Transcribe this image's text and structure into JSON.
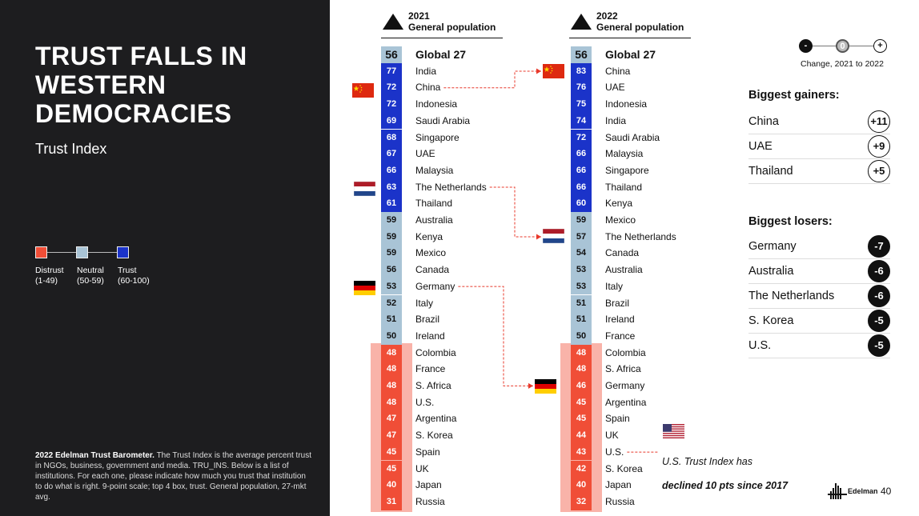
{
  "title": "TRUST FALLS IN\nWESTERN\nDEMOCRACIES",
  "subtitle": "Trust Index",
  "legend": [
    {
      "label": "Distrust\n(1-49)",
      "color": "#f04e37"
    },
    {
      "label": "Neutral\n(50-59)",
      "color": "#a9c4d6"
    },
    {
      "label": "Trust\n(60-100)",
      "color": "#1b33c9"
    }
  ],
  "footnote": {
    "bold": "2022 Edelman Trust Barometer.",
    "text": " The Trust Index is the average percent trust in NGOs, business, government and media. TRU_INS. Below is a list of institutions. For each one, please indicate how much you trust that institution to do what is right. 9-point scale; top 4 box, trust. General population, 27-mkt avg."
  },
  "colors": {
    "trust": "#1b33c9",
    "neutral": "#a9c4d6",
    "distrust": "#f04e37",
    "distrust_bg": "#f9b3a9",
    "connector": "#e8392b"
  },
  "columns": [
    {
      "year": "2021",
      "label": "General population",
      "global": {
        "score": "56",
        "name": "Global 27"
      },
      "rows": [
        {
          "score": 77,
          "name": "India"
        },
        {
          "score": 72,
          "name": "China"
        },
        {
          "score": 72,
          "name": "Indonesia"
        },
        {
          "score": 69,
          "name": "Saudi Arabia"
        },
        {
          "score": 68,
          "name": "Singapore"
        },
        {
          "score": 67,
          "name": "UAE"
        },
        {
          "score": 66,
          "name": "Malaysia"
        },
        {
          "score": 63,
          "name": "The Netherlands"
        },
        {
          "score": 61,
          "name": "Thailand"
        },
        {
          "score": 59,
          "name": "Australia"
        },
        {
          "score": 59,
          "name": "Kenya"
        },
        {
          "score": 59,
          "name": "Mexico"
        },
        {
          "score": 56,
          "name": "Canada"
        },
        {
          "score": 53,
          "name": "Germany"
        },
        {
          "score": 52,
          "name": "Italy"
        },
        {
          "score": 51,
          "name": "Brazil"
        },
        {
          "score": 50,
          "name": "Ireland"
        },
        {
          "score": 48,
          "name": "Colombia"
        },
        {
          "score": 48,
          "name": "France"
        },
        {
          "score": 48,
          "name": "S. Africa"
        },
        {
          "score": 48,
          "name": "U.S."
        },
        {
          "score": 47,
          "name": "Argentina"
        },
        {
          "score": 47,
          "name": "S. Korea"
        },
        {
          "score": 45,
          "name": "Spain"
        },
        {
          "score": 45,
          "name": "UK"
        },
        {
          "score": 40,
          "name": "Japan"
        },
        {
          "score": 31,
          "name": "Russia"
        }
      ]
    },
    {
      "year": "2022",
      "label": "General population",
      "global": {
        "score": "56",
        "name": "Global 27"
      },
      "rows": [
        {
          "score": 83,
          "name": "China"
        },
        {
          "score": 76,
          "name": "UAE"
        },
        {
          "score": 75,
          "name": "Indonesia"
        },
        {
          "score": 74,
          "name": "India"
        },
        {
          "score": 72,
          "name": "Saudi Arabia"
        },
        {
          "score": 66,
          "name": "Malaysia"
        },
        {
          "score": 66,
          "name": "Singapore"
        },
        {
          "score": 66,
          "name": "Thailand"
        },
        {
          "score": 60,
          "name": "Kenya"
        },
        {
          "score": 59,
          "name": "Mexico"
        },
        {
          "score": 57,
          "name": "The Netherlands"
        },
        {
          "score": 54,
          "name": "Canada"
        },
        {
          "score": 53,
          "name": "Australia"
        },
        {
          "score": 53,
          "name": "Italy"
        },
        {
          "score": 51,
          "name": "Brazil"
        },
        {
          "score": 51,
          "name": "Ireland"
        },
        {
          "score": 50,
          "name": "France"
        },
        {
          "score": 48,
          "name": "Colombia"
        },
        {
          "score": 48,
          "name": "S. Africa"
        },
        {
          "score": 46,
          "name": "Germany"
        },
        {
          "score": 45,
          "name": "Argentina"
        },
        {
          "score": 45,
          "name": "Spain"
        },
        {
          "score": 44,
          "name": "UK"
        },
        {
          "score": 43,
          "name": "U.S."
        },
        {
          "score": 42,
          "name": "S. Korea"
        },
        {
          "score": 40,
          "name": "Japan"
        },
        {
          "score": 32,
          "name": "Russia"
        }
      ]
    }
  ],
  "connectors": [
    {
      "flag": "china-flag",
      "from": "China",
      "to": "China"
    },
    {
      "flag": "netherlands-flag",
      "from": "The Netherlands",
      "to": "The Netherlands"
    },
    {
      "flag": "germany-flag",
      "from": "Germany",
      "to": "Germany"
    }
  ],
  "us_note": {
    "line1": "U.S. Trust Index has",
    "line2": "declined 10 pts since 2017"
  },
  "key": {
    "minus": "-",
    "zero": "0",
    "plus": "+",
    "label": "Change, 2021 to 2022"
  },
  "gainers": {
    "title": "Biggest gainers:",
    "items": [
      {
        "name": "China",
        "change": "+11"
      },
      {
        "name": "UAE",
        "change": "+9"
      },
      {
        "name": "Thailand",
        "change": "+5"
      }
    ]
  },
  "losers": {
    "title": "Biggest losers:",
    "items": [
      {
        "name": "Germany",
        "change": "-7"
      },
      {
        "name": "Australia",
        "change": "-6"
      },
      {
        "name": "The Netherlands",
        "change": "-6"
      },
      {
        "name": "S. Korea",
        "change": "-5"
      },
      {
        "name": "U.S.",
        "change": "-5"
      }
    ]
  },
  "brand": "Edelman",
  "page_number": "40"
}
